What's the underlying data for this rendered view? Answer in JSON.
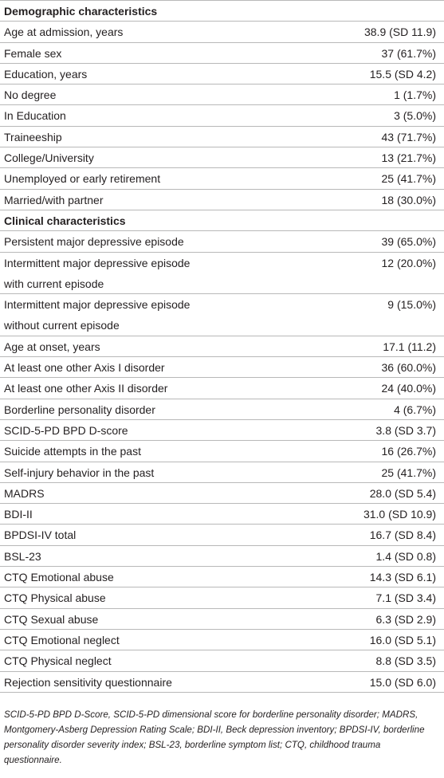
{
  "sections": [
    {
      "title": "Demographic characteristics",
      "rows": [
        {
          "label": "Age at admission, years",
          "value": "38.9 (SD 11.9)"
        },
        {
          "label": "Female sex",
          "value": "37 (61.7%)"
        },
        {
          "label": "Education, years",
          "value": "15.5 (SD 4.2)"
        },
        {
          "label": "No degree",
          "value": "1 (1.7%)"
        },
        {
          "label": "In Education",
          "value": "3 (5.0%)"
        },
        {
          "label": "Traineeship",
          "value": "43 (71.7%)"
        },
        {
          "label": "College/University",
          "value": "13 (21.7%)"
        },
        {
          "label": "Unemployed or early retirement",
          "value": "25 (41.7%)"
        },
        {
          "label": "Married/with partner",
          "value": "18 (30.0%)"
        }
      ]
    },
    {
      "title": "Clinical characteristics",
      "rows": [
        {
          "label": "Persistent major depressive episode",
          "value": "39 (65.0%)"
        },
        {
          "label": "Intermittent major depressive episode",
          "label2": "with current episode",
          "value": "12 (20.0%)"
        },
        {
          "label": "Intermittent major depressive episode",
          "label2": "without current episode",
          "value": "9 (15.0%)"
        },
        {
          "label": "Age at onset, years",
          "value": "17.1 (11.2)"
        },
        {
          "label": "At least one other Axis I disorder",
          "value": "36 (60.0%)"
        },
        {
          "label": "At least one other Axis II disorder",
          "value": "24 (40.0%)"
        },
        {
          "label": "Borderline personality disorder",
          "value": "4 (6.7%)"
        },
        {
          "label": "SCID-5-PD BPD D-score",
          "value": "3.8 (SD 3.7)"
        },
        {
          "label": "Suicide attempts in the past",
          "value": "16 (26.7%)"
        },
        {
          "label": "Self-injury behavior in the past",
          "value": "25 (41.7%)"
        },
        {
          "label": "MADRS",
          "value": "28.0 (SD 5.4)"
        },
        {
          "label": "BDI-II",
          "value": "31.0 (SD 10.9)"
        },
        {
          "label": "BPDSI-IV total",
          "value": "16.7 (SD 8.4)"
        },
        {
          "label": "BSL-23",
          "value": "1.4 (SD 0.8)"
        },
        {
          "label": "CTQ Emotional abuse",
          "value": "14.3 (SD 6.1)"
        },
        {
          "label": "CTQ Physical abuse",
          "value": "7.1 (SD 3.4)"
        },
        {
          "label": "CTQ Sexual abuse",
          "value": "6.3 (SD 2.9)"
        },
        {
          "label": "CTQ Emotional neglect",
          "value": "16.0 (SD 5.1)"
        },
        {
          "label": "CTQ Physical neglect",
          "value": "8.8 (SD 3.5)"
        },
        {
          "label": "Rejection sensitivity questionnaire",
          "value": "15.0 (SD 6.0)"
        }
      ]
    }
  ],
  "footnote": "SCID-5-PD BPD D-Score, SCID-5-PD dimensional score for borderline personality disorder; MADRS, Montgomery-Asberg Depression Rating Scale; BDI-II, Beck depression inventory; BPDSI-IV, borderline personality disorder severity index; BSL-23, borderline symptom list; CTQ, childhood trauma questionnaire."
}
